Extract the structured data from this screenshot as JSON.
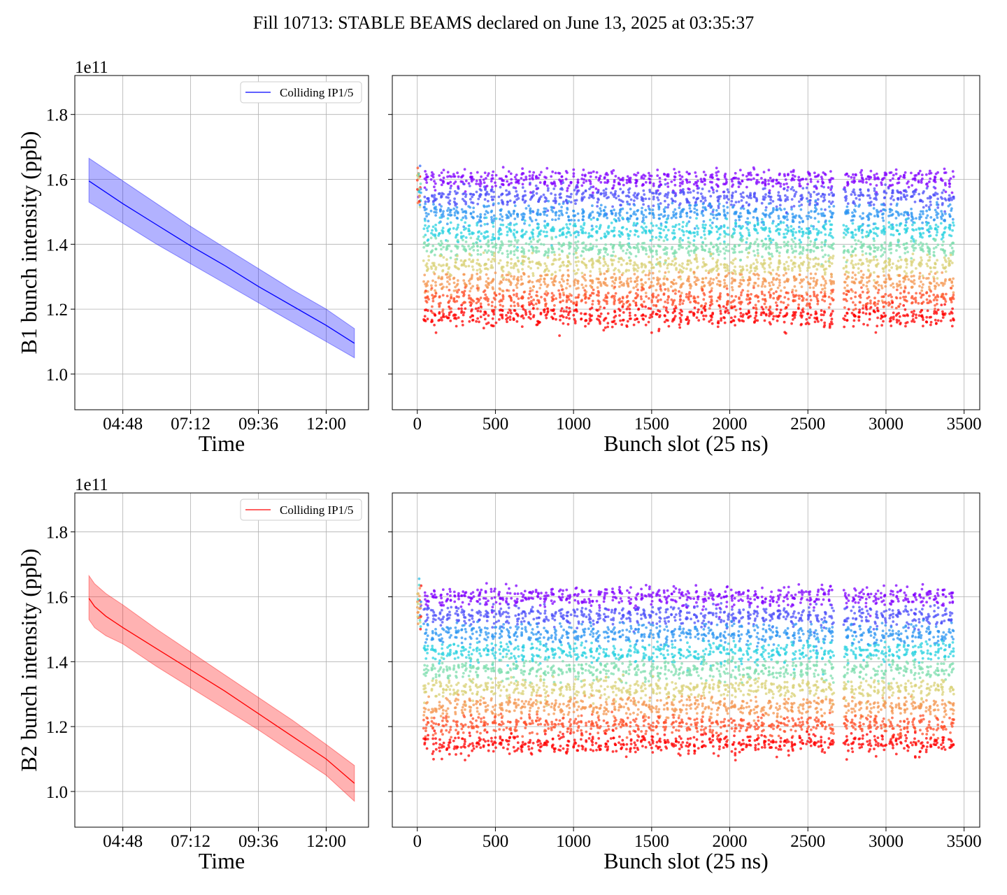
{
  "figure": {
    "title": "Fill 10713: STABLE BEAMS declared on June 13, 2025 at 03:35:37"
  },
  "chart_data": [
    {
      "type": "line",
      "ylabel": "B1 bunch intensity (ppb)",
      "xlabel": "Time",
      "y_multiplier_label": "1e11",
      "ylim": [
        0.89,
        1.92
      ],
      "xlim_hours": [
        3.1,
        13.5
      ],
      "x_ticks": [
        {
          "label": "04:48",
          "hour": 4.8
        },
        {
          "label": "07:12",
          "hour": 7.2
        },
        {
          "label": "09:36",
          "hour": 9.6
        },
        {
          "label": "12:00",
          "hour": 12.0
        }
      ],
      "y_ticks": [
        1.0,
        1.2,
        1.4,
        1.6,
        1.8
      ],
      "grid": true,
      "legend": {
        "location": "top-right",
        "entries": [
          "Colliding IP1/5"
        ]
      },
      "series": [
        {
          "name": "Colliding IP1/5",
          "color": "#0000ff",
          "band_color": "#0000ff",
          "x_hours": [
            3.6,
            4.8,
            6.0,
            7.2,
            8.4,
            9.6,
            10.8,
            12.0,
            13.0
          ],
          "mean": [
            1.595,
            1.525,
            1.46,
            1.395,
            1.335,
            1.27,
            1.21,
            1.15,
            1.095
          ],
          "upper": [
            1.665,
            1.595,
            1.525,
            1.455,
            1.39,
            1.325,
            1.26,
            1.2,
            1.14
          ],
          "lower": [
            1.53,
            1.465,
            1.4,
            1.34,
            1.28,
            1.22,
            1.16,
            1.1,
            1.05
          ]
        }
      ]
    },
    {
      "type": "scatter",
      "xlabel": "Bunch slot (25 ns)",
      "ylim": [
        0.89,
        1.92
      ],
      "xlim": [
        -160,
        3600
      ],
      "x_ticks": [
        0,
        500,
        1000,
        1500,
        2000,
        2500,
        3000,
        3500
      ],
      "y_ticks": [
        1.0,
        1.2,
        1.4,
        1.6,
        1.8
      ],
      "grid": true,
      "colormap": "rainbow",
      "colormap_stops": [
        "#8000ff",
        "#2c7ef7",
        "#2adddd",
        "#d4dd80",
        "#ff7f41",
        "#ff0000"
      ],
      "slots_range": [
        0,
        3430
      ],
      "band_top": 1.6,
      "band_bottom": 1.18
    },
    {
      "type": "line",
      "ylabel": "B2 bunch intensity (ppb)",
      "xlabel": "Time",
      "y_multiplier_label": "1e11",
      "ylim": [
        0.89,
        1.92
      ],
      "xlim_hours": [
        3.1,
        13.5
      ],
      "x_ticks": [
        {
          "label": "04:48",
          "hour": 4.8
        },
        {
          "label": "07:12",
          "hour": 7.2
        },
        {
          "label": "09:36",
          "hour": 9.6
        },
        {
          "label": "12:00",
          "hour": 12.0
        }
      ],
      "y_ticks": [
        1.0,
        1.2,
        1.4,
        1.6,
        1.8
      ],
      "grid": true,
      "legend": {
        "location": "top-right",
        "entries": [
          "Colliding IP1/5"
        ]
      },
      "series": [
        {
          "name": "Colliding IP1/5",
          "color": "#ff0000",
          "band_color": "#ff0000",
          "x_hours": [
            3.6,
            3.8,
            4.2,
            4.8,
            6.0,
            7.2,
            8.4,
            9.6,
            10.8,
            12.0,
            13.0
          ],
          "mean": [
            1.595,
            1.57,
            1.54,
            1.505,
            1.44,
            1.375,
            1.31,
            1.24,
            1.17,
            1.1,
            1.025
          ],
          "upper": [
            1.665,
            1.64,
            1.61,
            1.575,
            1.5,
            1.43,
            1.36,
            1.29,
            1.22,
            1.145,
            1.08
          ],
          "lower": [
            1.53,
            1.505,
            1.48,
            1.455,
            1.385,
            1.32,
            1.255,
            1.19,
            1.12,
            1.05,
            0.97
          ]
        }
      ]
    },
    {
      "type": "scatter",
      "xlabel": "Bunch slot (25 ns)",
      "ylim": [
        0.89,
        1.92
      ],
      "xlim": [
        -160,
        3600
      ],
      "x_ticks": [
        0,
        500,
        1000,
        1500,
        2000,
        2500,
        3000,
        3500
      ],
      "y_ticks": [
        1.0,
        1.2,
        1.4,
        1.6,
        1.8
      ],
      "grid": true,
      "colormap": "rainbow",
      "colormap_stops": [
        "#8000ff",
        "#2c7ef7",
        "#2adddd",
        "#d4dd80",
        "#ff7f41",
        "#ff0000"
      ],
      "slots_range": [
        0,
        3430
      ],
      "band_top": 1.6,
      "band_bottom": 1.15
    }
  ]
}
